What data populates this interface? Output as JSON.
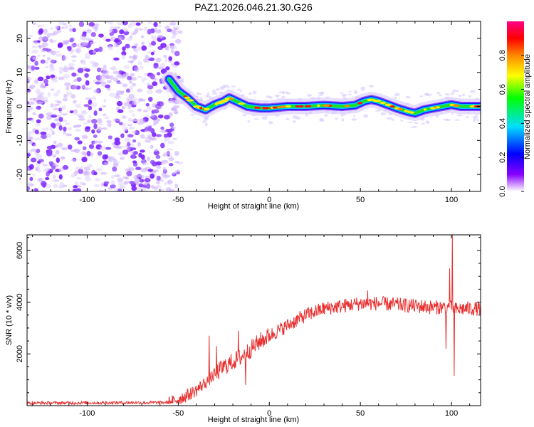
{
  "title": "PAZ1.2026.046.21.30.G26",
  "chart_data": [
    {
      "type": "heatmap",
      "name": "spectrogram",
      "xlabel": "Height of straight line (km)",
      "ylabel": "Frequency (Hz)",
      "xlim": [
        -133,
        116
      ],
      "ylim": [
        -25,
        25
      ],
      "xticks": [
        {
          "v": -100,
          "label": "-100"
        },
        {
          "v": -50,
          "label": "-50"
        },
        {
          "v": 0,
          "label": "0"
        },
        {
          "v": 50,
          "label": "50"
        },
        {
          "v": 100,
          "label": "100"
        }
      ],
      "yticks": [
        {
          "v": -20,
          "label": "-20"
        },
        {
          "v": -10,
          "label": "-10"
        },
        {
          "v": 0,
          "label": "0"
        },
        {
          "v": 10,
          "label": "10"
        },
        {
          "v": 20,
          "label": "20"
        }
      ],
      "noise_region_x": [
        -133,
        -53
      ],
      "ridge": {
        "x": [
          -55,
          -50,
          -45,
          -40,
          -35,
          -30,
          -25,
          -22,
          -18,
          -12,
          -5,
          0,
          10,
          20,
          30,
          40,
          47,
          52,
          56,
          60,
          65,
          70,
          76,
          80,
          85,
          90,
          95,
          100,
          105,
          110,
          116
        ],
        "y": [
          8,
          4.5,
          2.5,
          0,
          -1,
          0.5,
          1.5,
          2.5,
          1.5,
          0,
          -0.5,
          -0.5,
          0,
          0,
          0.3,
          0,
          0.3,
          1.5,
          2,
          1.5,
          0.5,
          -0.5,
          -1.5,
          -2,
          -1,
          -0.5,
          0,
          0.5,
          0,
          0,
          0
        ]
      },
      "colorbar": {
        "label": "Normalized spectral amplitude",
        "ticks": [
          {
            "v": 0.0,
            "label": "0.0"
          },
          {
            "v": 0.2,
            "label": "0.2"
          },
          {
            "v": 0.4,
            "label": "0.4"
          },
          {
            "v": 0.6,
            "label": "0.6"
          },
          {
            "v": 0.8,
            "label": "0.8"
          }
        ],
        "range": [
          0,
          1
        ],
        "stops": [
          "#ffffff",
          "#8800ff",
          "#0000ff",
          "#00ddff",
          "#00ff00",
          "#ffff00",
          "#ff8800",
          "#ff0000",
          "#ff0088"
        ]
      }
    },
    {
      "type": "line",
      "name": "snr",
      "xlabel": "Height of straight line (km)",
      "ylabel": "SNR (10 * v/v)",
      "xlim": [
        -133,
        116
      ],
      "ylim": [
        0,
        6600
      ],
      "xticks": [
        {
          "v": -100,
          "label": "-100"
        },
        {
          "v": -50,
          "label": "-50"
        },
        {
          "v": 0,
          "label": "0"
        },
        {
          "v": 50,
          "label": "50"
        },
        {
          "v": 100,
          "label": "100"
        }
      ],
      "yticks": [
        {
          "v": 2000,
          "label": "2000"
        },
        {
          "v": 4000,
          "label": "4000"
        },
        {
          "v": 6000,
          "label": "6000"
        }
      ],
      "color": "#e83030",
      "envelope": {
        "x": [
          -133,
          -55,
          -50,
          -45,
          -40,
          -35,
          -30,
          -25,
          -20,
          -15,
          -10,
          -5,
          0,
          10,
          20,
          30,
          40,
          50,
          60,
          70,
          80,
          90,
          95,
          100,
          103,
          106,
          110,
          116
        ],
        "y": [
          100,
          120,
          250,
          400,
          600,
          900,
          1200,
          1500,
          1700,
          1900,
          2200,
          2500,
          2700,
          3100,
          3500,
          3750,
          3850,
          3950,
          3950,
          3900,
          3850,
          3800,
          3800,
          3800,
          3700,
          3750,
          3750,
          3750
        ]
      },
      "spikes": [
        {
          "x": -33,
          "y": 2700
        },
        {
          "x": -29,
          "y": 2300
        },
        {
          "x": -17,
          "y": 2900
        },
        {
          "x": -13,
          "y": 800
        },
        {
          "x": 54,
          "y": 4450
        },
        {
          "x": 100.5,
          "y": 6600
        },
        {
          "x": 101.5,
          "y": 1150
        },
        {
          "x": 99,
          "y": 5300
        },
        {
          "x": 97,
          "y": 2200
        }
      ]
    }
  ]
}
